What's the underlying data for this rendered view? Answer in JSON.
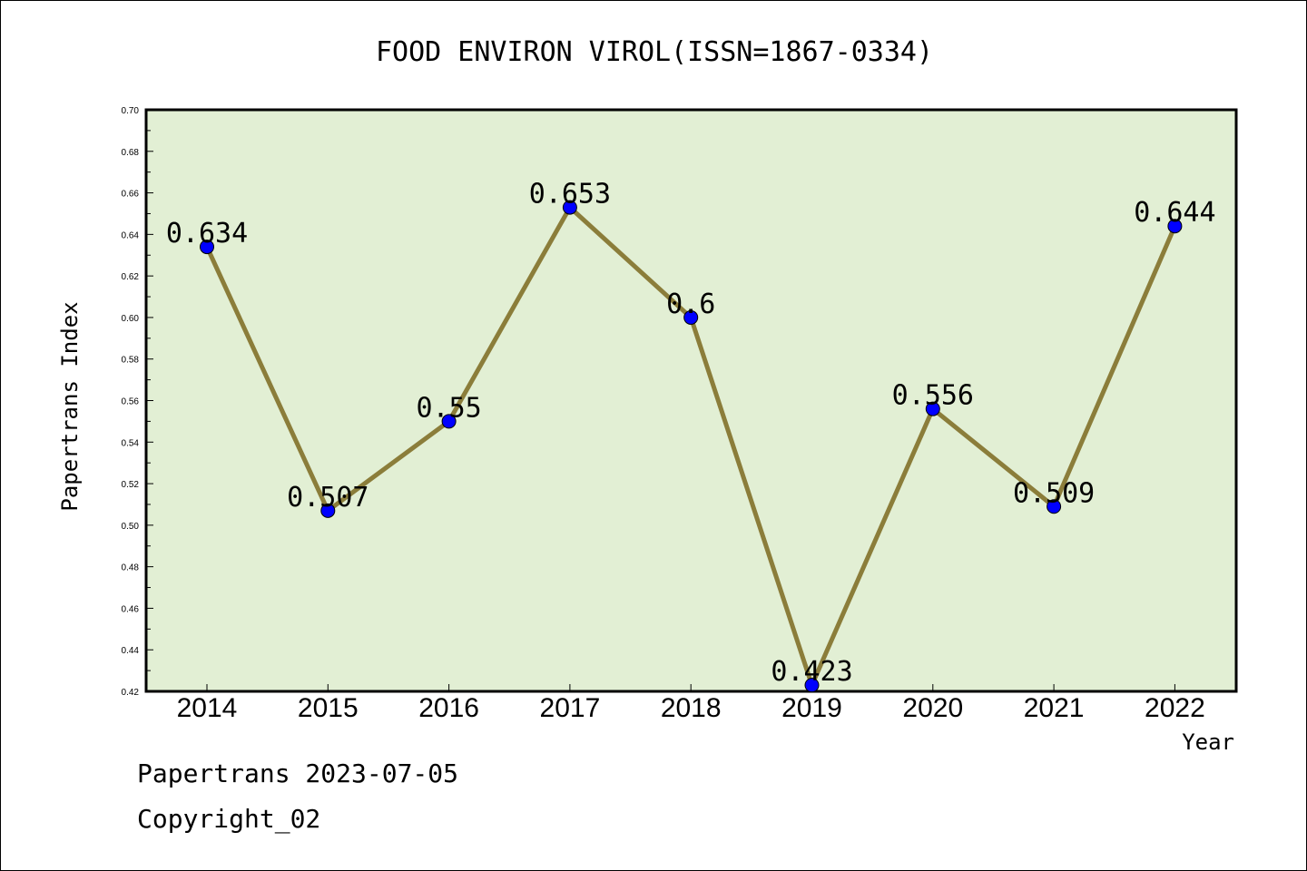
{
  "chart_data": {
    "type": "line",
    "title": "FOOD ENVIRON VIROL(ISSN=1867-0334)",
    "xlabel": "Year",
    "ylabel": "Papertrans Index",
    "x": [
      "2014",
      "2015",
      "2016",
      "2017",
      "2018",
      "2019",
      "2020",
      "2021",
      "2022"
    ],
    "series": [
      {
        "values": [
          0.634,
          0.507,
          0.55,
          0.653,
          0.6,
          0.423,
          0.556,
          0.509,
          0.644
        ],
        "data_labels": [
          "0.634",
          "0.507",
          "0.55",
          "0.653",
          "0.6",
          "0.423",
          "0.556",
          "0.509",
          "0.644"
        ]
      }
    ],
    "ylim": [
      0.42,
      0.7
    ],
    "yticks": [
      "0.42",
      "0.44",
      "0.46",
      "0.48",
      "0.50",
      "0.52",
      "0.54",
      "0.56",
      "0.58",
      "0.60",
      "0.62",
      "0.64",
      "0.66",
      "0.68",
      "0.70"
    ],
    "grid": false,
    "colors": {
      "plot_background": "#e2efd4",
      "line": "#8b7d3a",
      "marker": "#0000ff"
    }
  },
  "footer": {
    "line1": "Papertrans 2023-07-05",
    "line2": "Copyright_02"
  }
}
